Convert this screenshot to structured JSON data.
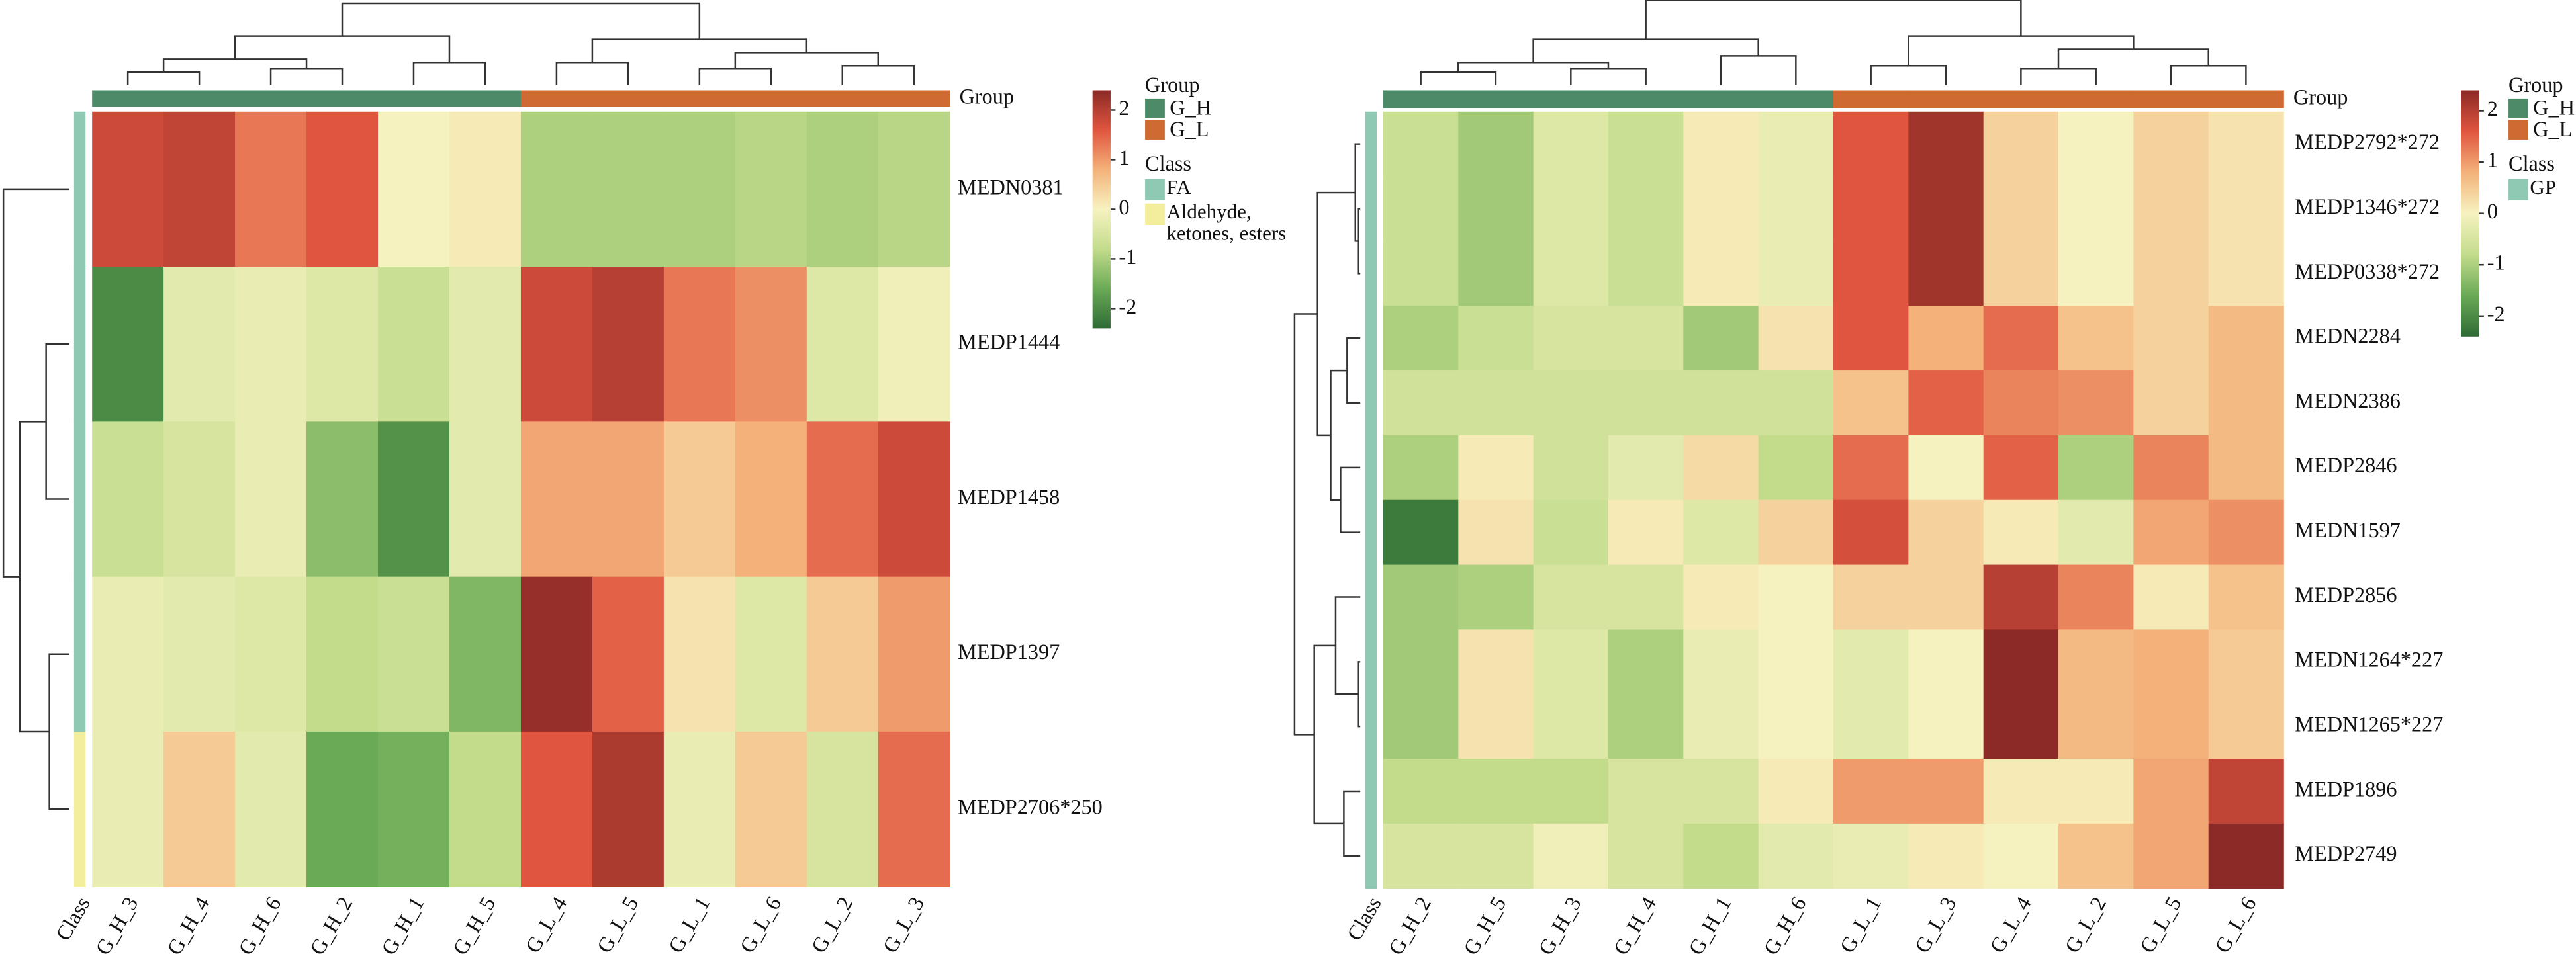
{
  "chart_data": [
    {
      "type": "heatmap",
      "columns": [
        "G_H_3",
        "G_H_4",
        "G_H_6",
        "G_H_2",
        "G_H_1",
        "G_H_5",
        "G_L_4",
        "G_L_5",
        "G_L_1",
        "G_L_6",
        "G_L_2",
        "G_L_3"
      ],
      "rows": [
        "MEDN0381",
        "MEDP1444",
        "MEDP1458",
        "MEDP1397",
        "MEDP2706*250"
      ],
      "values": [
        [
          1.8,
          1.9,
          1.3,
          1.6,
          0,
          0.1,
          -1,
          -1,
          -1,
          -0.9,
          -1,
          -0.9
        ],
        [
          -2,
          -0.3,
          -0.2,
          -0.4,
          -0.7,
          -0.3,
          1.8,
          2,
          1.3,
          1.1,
          -0.4,
          -0.1
        ],
        [
          -0.7,
          -0.5,
          -0.2,
          -1.3,
          -1.9,
          -0.3,
          0.9,
          0.9,
          0.5,
          0.8,
          1.4,
          1.8
        ],
        [
          -0.2,
          -0.3,
          -0.4,
          -0.8,
          -0.7,
          -1.4,
          2.3,
          1.5,
          0.2,
          -0.4,
          0.5,
          1.0
        ],
        [
          -0.2,
          0.5,
          -0.3,
          -1.6,
          -1.5,
          -0.8,
          1.6,
          2.1,
          -0.2,
          0.5,
          -0.5,
          1.4
        ]
      ],
      "column_groups": [
        "G_H",
        "G_H",
        "G_H",
        "G_H",
        "G_H",
        "G_H",
        "G_L",
        "G_L",
        "G_L",
        "G_L",
        "G_L",
        "G_L"
      ],
      "row_classes": [
        "FA",
        "FA",
        "FA",
        "FA",
        "Aldehyde, ketones, esters"
      ],
      "group_bar_label": "Group",
      "class_bar_label": "Class",
      "legend_group_title": "Group",
      "legend_class_title": "Class",
      "groups": [
        {
          "name": "G_H",
          "color": "#4d8a68"
        },
        {
          "name": "G_L",
          "color": "#cf6a33"
        }
      ],
      "classes": [
        {
          "name": "FA",
          "color": "#8fc9b4"
        },
        {
          "name": "Aldehyde, ketones, esters",
          "color": "#f3ee9e"
        }
      ],
      "zlim": [
        -2.4,
        2.4
      ],
      "zticks": [
        -2,
        -1,
        0,
        1,
        2
      ],
      "colormap": [
        "#2e6b34",
        "#6aaa56",
        "#c3dc8c",
        "#f6f2c0",
        "#f4b27a",
        "#e0553f",
        "#8b2a26"
      ]
    },
    {
      "type": "heatmap",
      "columns": [
        "G_H_2",
        "G_H_5",
        "G_H_3",
        "G_H_4",
        "G_H_1",
        "G_H_6",
        "G_L_1",
        "G_L_3",
        "G_L_4",
        "G_L_2",
        "G_L_5",
        "G_L_6"
      ],
      "rows": [
        "MEDP2792*272",
        "MEDP1346*272",
        "MEDP0338*272",
        "MEDN2284",
        "MEDN2386",
        "MEDP2846",
        "MEDN1597",
        "MEDP2856",
        "MEDN1264*227",
        "MEDN1265*227",
        "MEDP1896",
        "MEDP2749"
      ],
      "values": [
        [
          -0.7,
          -1.1,
          -0.4,
          -0.7,
          0.1,
          -0.2,
          1.6,
          2.2,
          0.4,
          0,
          0.4,
          0.2
        ],
        [
          -0.7,
          -1.1,
          -0.4,
          -0.7,
          0.1,
          -0.2,
          1.6,
          2.2,
          0.4,
          0,
          0.4,
          0.2
        ],
        [
          -0.7,
          -1.1,
          -0.4,
          -0.7,
          0.1,
          -0.2,
          1.6,
          2.2,
          0.4,
          0,
          0.4,
          0.2
        ],
        [
          -1,
          -0.7,
          -0.5,
          -0.5,
          -1.1,
          0.2,
          1.6,
          0.8,
          1.4,
          0.6,
          0.4,
          0.7
        ],
        [
          -0.6,
          -0.6,
          -0.6,
          -0.6,
          -0.6,
          -0.6,
          0.6,
          1.5,
          1.2,
          1.1,
          0.4,
          0.7
        ],
        [
          -1,
          0.1,
          -0.6,
          -0.3,
          0.3,
          -0.8,
          1.4,
          0,
          1.5,
          -1,
          1.2,
          0.7
        ],
        [
          -2.2,
          0.2,
          -0.7,
          0.1,
          -0.4,
          0.4,
          1.7,
          0.4,
          0.1,
          -0.3,
          0.9,
          1.1
        ],
        [
          -1.1,
          -1,
          -0.5,
          -0.5,
          0.1,
          0,
          0.4,
          0.4,
          2,
          1.2,
          0.1,
          0.6
        ],
        [
          -1.1,
          0.2,
          -0.4,
          -1,
          -0.2,
          0,
          -0.3,
          0,
          2.4,
          0.7,
          0.8,
          0.5
        ],
        [
          -1.1,
          0.2,
          -0.4,
          -1,
          -0.2,
          0,
          -0.3,
          0,
          2.4,
          0.7,
          0.8,
          0.5
        ],
        [
          -0.8,
          -0.8,
          -0.8,
          -0.5,
          -0.5,
          0.1,
          1,
          1,
          0.1,
          0.1,
          0.9,
          1.9
        ],
        [
          -0.5,
          -0.5,
          -0.1,
          -0.5,
          -0.8,
          -0.3,
          -0.2,
          0.1,
          0,
          0.6,
          0.9,
          2.5
        ]
      ],
      "column_groups": [
        "G_H",
        "G_H",
        "G_H",
        "G_H",
        "G_H",
        "G_H",
        "G_L",
        "G_L",
        "G_L",
        "G_L",
        "G_L",
        "G_L"
      ],
      "row_classes": [
        "GP",
        "GP",
        "GP",
        "GP",
        "GP",
        "GP",
        "GP",
        "GP",
        "GP",
        "GP",
        "GP",
        "GP"
      ],
      "group_bar_label": "Group",
      "class_bar_label": "Class",
      "legend_group_title": "Group",
      "legend_class_title": "Class",
      "groups": [
        {
          "name": "G_H",
          "color": "#4d8a68"
        },
        {
          "name": "G_L",
          "color": "#cf6a33"
        }
      ],
      "classes": [
        {
          "name": "GP",
          "color": "#8fc9b4"
        }
      ],
      "zlim": [
        -2.4,
        2.4
      ],
      "zticks": [
        -2,
        -1,
        0,
        1,
        2
      ],
      "colormap": [
        "#2e6b34",
        "#6aaa56",
        "#c3dc8c",
        "#f6f2c0",
        "#f4b27a",
        "#e0553f",
        "#8b2a26"
      ]
    }
  ]
}
